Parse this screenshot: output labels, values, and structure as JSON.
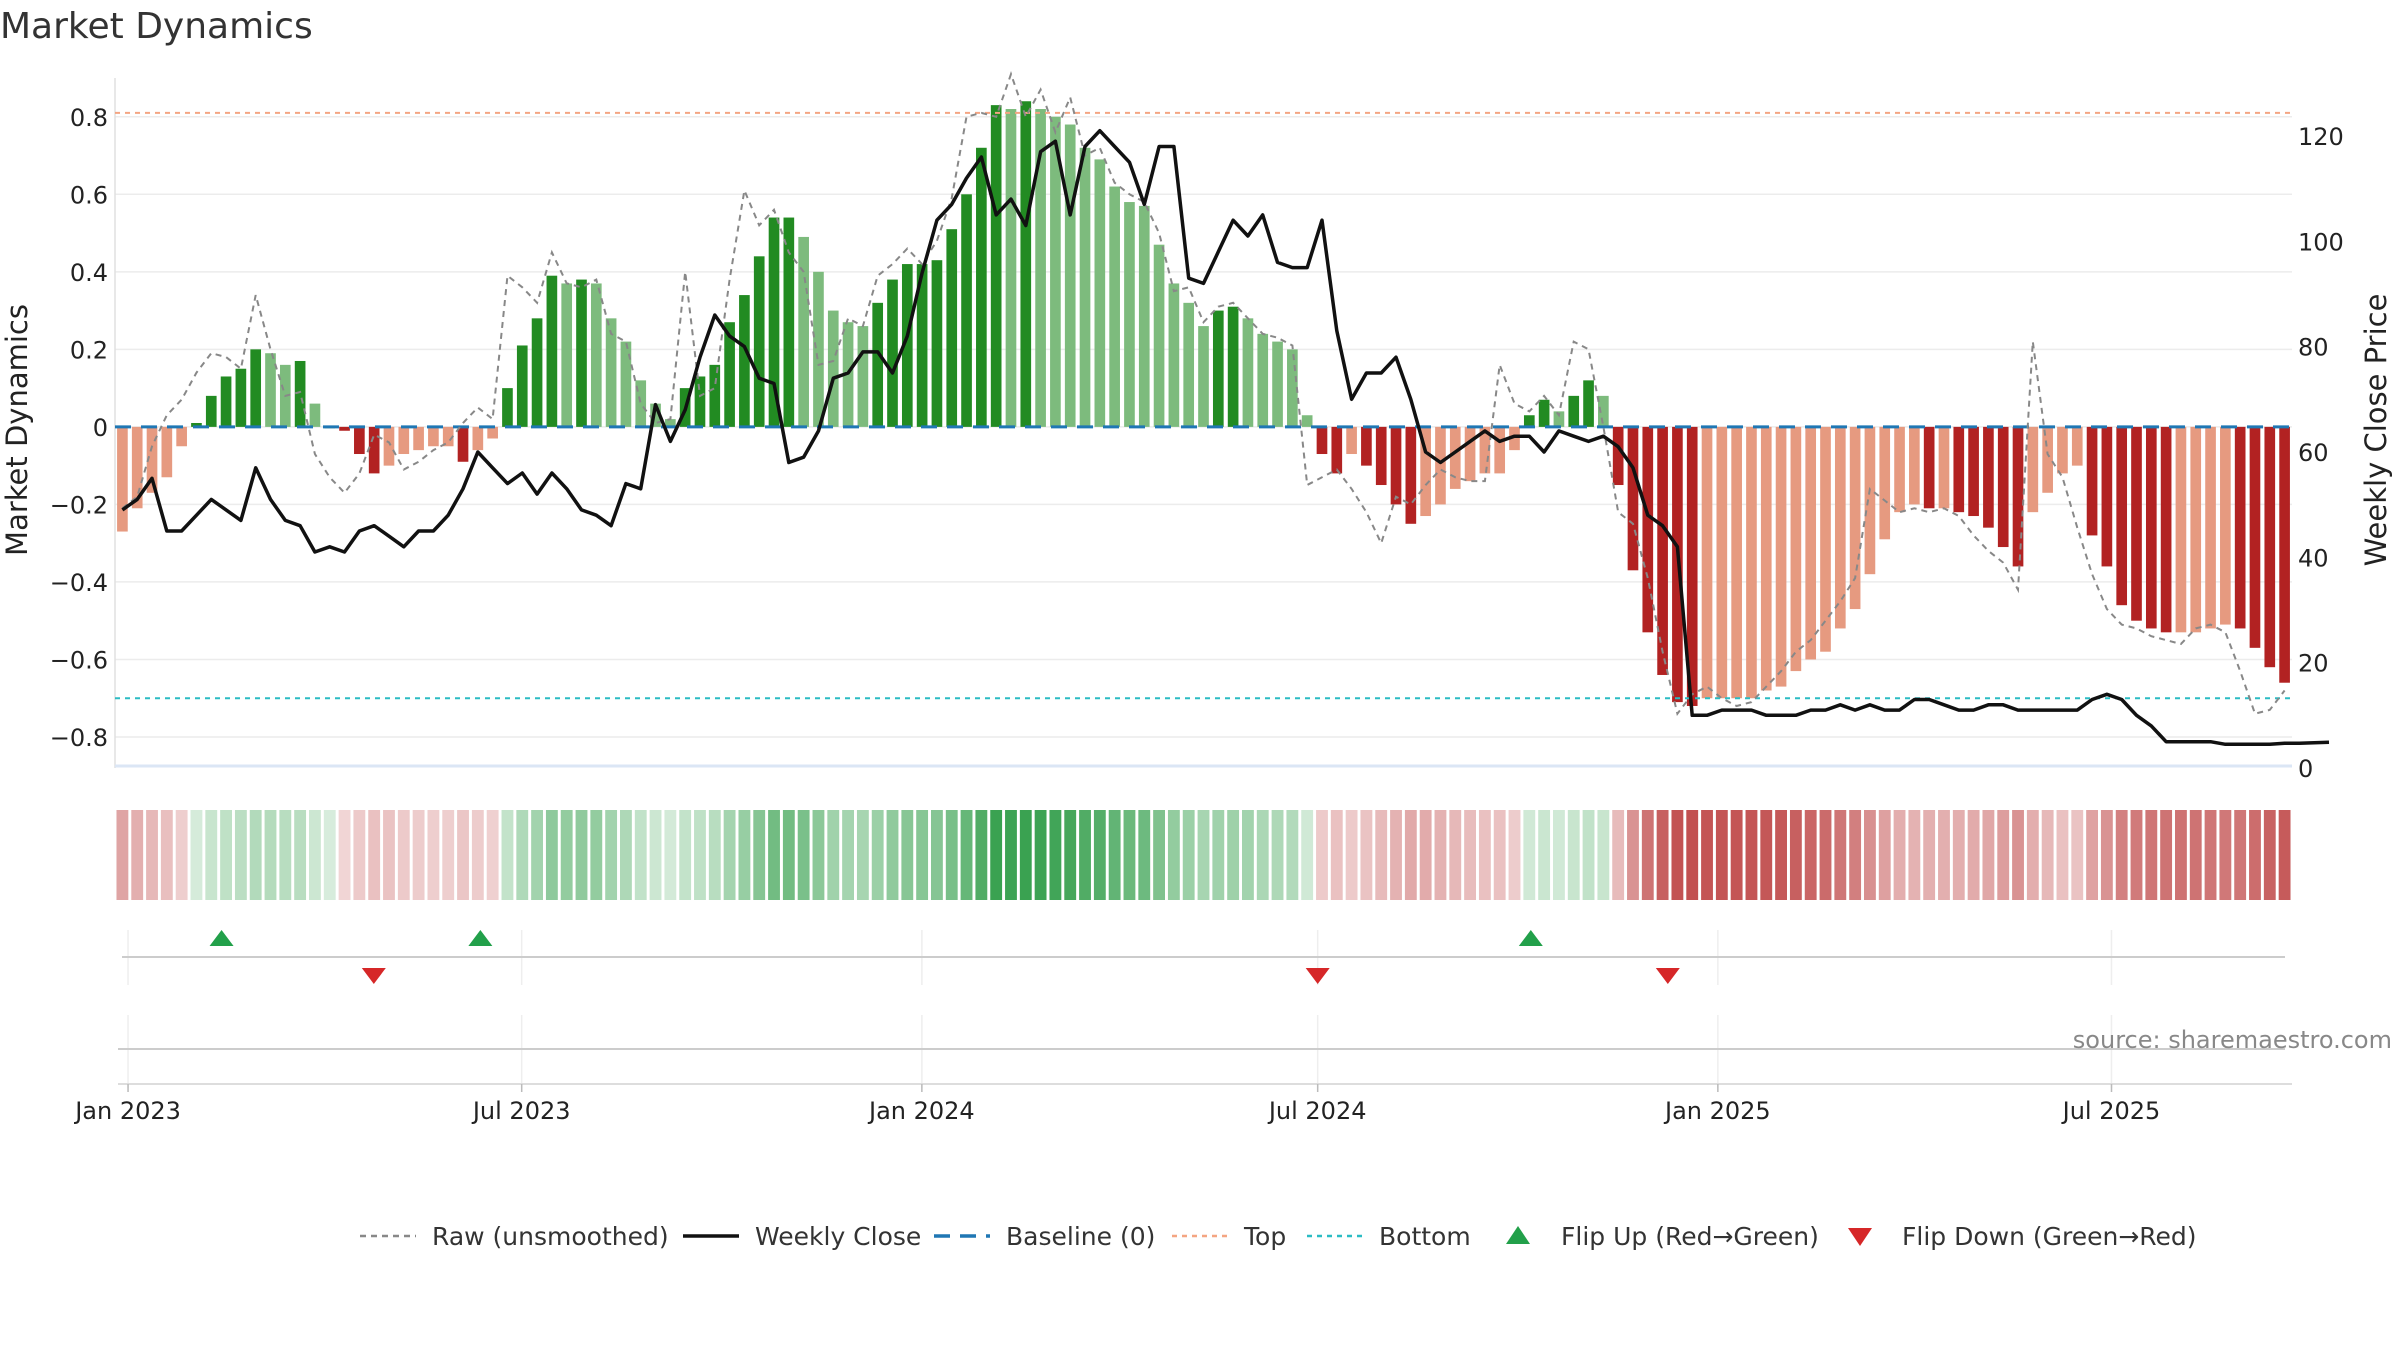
{
  "chart_data": {
    "type": "bar",
    "title": "Market Dynamics",
    "ylabel_left": "Market Dynamics",
    "ylabel_right": "Weekly Close Price",
    "ylim_left": [
      -0.88,
      0.9
    ],
    "ylim_right": [
      0,
      131
    ],
    "yticks_left": [
      "0.8",
      "0.6",
      "0.4",
      "0.2",
      "0",
      "−0.2",
      "−0.4",
      "−0.6",
      "−0.8"
    ],
    "yticks_right": [
      "120",
      "100",
      "80",
      "60",
      "40",
      "20",
      "0"
    ],
    "xticks": [
      "Jan 2023",
      "Jul 2023",
      "Jan 2024",
      "Jul 2024",
      "Jan 2025",
      "Jul 2025"
    ],
    "top_level": 0.81,
    "bottom_level": -0.7,
    "baseline": 0,
    "bars": [
      -0.27,
      -0.21,
      -0.17,
      -0.13,
      -0.05,
      0.01,
      0.08,
      0.13,
      0.15,
      0.2,
      0.19,
      0.16,
      0.17,
      0.06,
      0.0,
      -0.01,
      -0.07,
      -0.12,
      -0.1,
      -0.07,
      -0.06,
      -0.05,
      -0.05,
      -0.09,
      -0.06,
      -0.03,
      0.1,
      0.21,
      0.28,
      0.39,
      0.37,
      0.38,
      0.37,
      0.28,
      0.22,
      0.12,
      0.06,
      0.02,
      0.1,
      0.13,
      0.16,
      0.27,
      0.34,
      0.44,
      0.54,
      0.54,
      0.49,
      0.4,
      0.3,
      0.27,
      0.26,
      0.32,
      0.38,
      0.42,
      0.42,
      0.43,
      0.51,
      0.6,
      0.72,
      0.83,
      0.82,
      0.84,
      0.82,
      0.8,
      0.78,
      0.72,
      0.69,
      0.62,
      0.58,
      0.57,
      0.47,
      0.37,
      0.32,
      0.26,
      0.3,
      0.31,
      0.28,
      0.24,
      0.22,
      0.2,
      0.03,
      -0.07,
      -0.12,
      -0.07,
      -0.1,
      -0.15,
      -0.2,
      -0.25,
      -0.23,
      -0.2,
      -0.16,
      -0.14,
      -0.12,
      -0.12,
      -0.06,
      0.03,
      0.07,
      0.04,
      0.08,
      0.12,
      0.08,
      -0.15,
      -0.37,
      -0.53,
      -0.64,
      -0.71,
      -0.72,
      -0.7,
      -0.7,
      -0.7,
      -0.7,
      -0.68,
      -0.67,
      -0.63,
      -0.6,
      -0.58,
      -0.52,
      -0.47,
      -0.38,
      -0.29,
      -0.22,
      -0.2,
      -0.21,
      -0.21,
      -0.22,
      -0.23,
      -0.26,
      -0.31,
      -0.36,
      -0.22,
      -0.17,
      -0.12,
      -0.1,
      -0.28,
      -0.36,
      -0.46,
      -0.5,
      -0.52,
      -0.53,
      -0.53,
      -0.53,
      -0.52,
      -0.51,
      -0.52,
      -0.57,
      -0.62,
      -0.66
    ],
    "raw": [
      -0.21,
      -0.18,
      -0.05,
      0.03,
      0.07,
      0.14,
      0.19,
      0.18,
      0.15,
      0.34,
      0.2,
      0.08,
      0.09,
      -0.07,
      -0.13,
      -0.17,
      -0.12,
      -0.02,
      -0.04,
      -0.11,
      -0.09,
      -0.06,
      -0.04,
      0.01,
      0.05,
      0.02,
      0.39,
      0.36,
      0.32,
      0.45,
      0.37,
      0.36,
      0.38,
      0.24,
      0.22,
      0.06,
      0.01,
      0.02,
      0.4,
      0.08,
      0.1,
      0.38,
      0.61,
      0.52,
      0.56,
      0.45,
      0.4,
      0.16,
      0.17,
      0.28,
      0.26,
      0.39,
      0.42,
      0.46,
      0.42,
      0.48,
      0.59,
      0.8,
      0.81,
      0.8,
      0.91,
      0.8,
      0.87,
      0.76,
      0.85,
      0.7,
      0.72,
      0.63,
      0.6,
      0.58,
      0.5,
      0.35,
      0.36,
      0.27,
      0.31,
      0.32,
      0.28,
      0.24,
      0.23,
      0.21,
      -0.15,
      -0.13,
      -0.11,
      -0.16,
      -0.22,
      -0.3,
      -0.18,
      -0.2,
      -0.15,
      -0.11,
      -0.13,
      -0.14,
      -0.14,
      0.16,
      0.06,
      0.04,
      0.08,
      0.03,
      0.22,
      0.2,
      0.0,
      -0.22,
      -0.25,
      -0.39,
      -0.58,
      -0.74,
      -0.69,
      -0.67,
      -0.7,
      -0.72,
      -0.71,
      -0.67,
      -0.63,
      -0.58,
      -0.55,
      -0.5,
      -0.45,
      -0.39,
      -0.16,
      -0.19,
      -0.22,
      -0.21,
      -0.22,
      -0.21,
      -0.23,
      -0.28,
      -0.32,
      -0.35,
      -0.42,
      0.22,
      -0.07,
      -0.13,
      -0.26,
      -0.38,
      -0.47,
      -0.51,
      -0.52,
      -0.54,
      -0.55,
      -0.56,
      -0.52,
      -0.51,
      -0.53,
      -0.63,
      -0.74,
      -0.73,
      -0.68
    ],
    "close": [
      49,
      51,
      55,
      45,
      45,
      48,
      51,
      49,
      47,
      57,
      51,
      47,
      46,
      41,
      42,
      41,
      45,
      46,
      44,
      42,
      45,
      45,
      48,
      53,
      60,
      57,
      54,
      56,
      52,
      56,
      53,
      49,
      48,
      46,
      54,
      53,
      69,
      62,
      68,
      78,
      86,
      82,
      80,
      74,
      73,
      58,
      59,
      64,
      74,
      75,
      79,
      79,
      75,
      82,
      94,
      104,
      107,
      112,
      116,
      105,
      108,
      103,
      117,
      119,
      105,
      118,
      121,
      118,
      115,
      107,
      118,
      118,
      93,
      92,
      98,
      104,
      101,
      105,
      96,
      95,
      95,
      104,
      83,
      70,
      75,
      75,
      78,
      70,
      60,
      58,
      60,
      62,
      64,
      62,
      63,
      63,
      60,
      64,
      63,
      62,
      63,
      61,
      57,
      48,
      46,
      42,
      10,
      10,
      11,
      11,
      11,
      10,
      10,
      10,
      11,
      11,
      12,
      11,
      12,
      11,
      11,
      13,
      13,
      12,
      11,
      11,
      12,
      12,
      11,
      11,
      11,
      11,
      11,
      13,
      14,
      13,
      10,
      8,
      5,
      5,
      5,
      5,
      4.5,
      4.5,
      4.5,
      4.5,
      4.7,
      4.7,
      4.8,
      4.9
    ]
  },
  "strip_intensity_note": "",
  "flips": {
    "up": [
      "2023-02",
      "2023-06",
      "2024-10"
    ],
    "down": [
      "2023-04",
      "2024-07",
      "2024-12"
    ]
  },
  "colors": {
    "strong_green": "#228b22",
    "light_green": "#7dbb7d",
    "strong_red": "#b22222",
    "light_red": "#e69a80",
    "top_line": "#f4a582",
    "bottom_line": "#2bbcc4",
    "baseline": "#1f77b4",
    "flip_up": "#22a04a",
    "flip_down": "#d62728"
  },
  "source": "source: sharemaestro.com",
  "legend": {
    "raw": "Raw (unsmoothed)",
    "close": "Weekly Close",
    "baseline": "Baseline (0)",
    "top": "Top",
    "bottom": "Bottom",
    "flip_up": "Flip Up (Red→Green)",
    "flip_down": "Flip Down (Green→Red)"
  }
}
